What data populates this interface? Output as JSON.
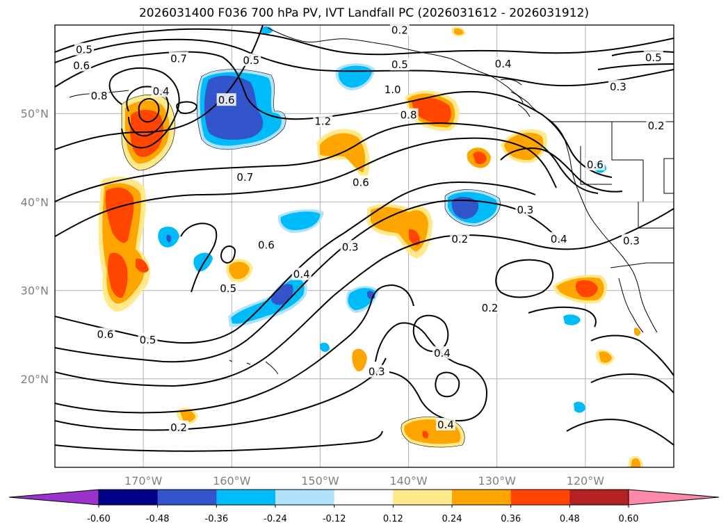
{
  "title": "2026031400 F036 700 hPa PV, IVT Landfall PC (2026031612 - 2026031912)",
  "map": {
    "lon_range": [
      -180,
      -110
    ],
    "lat_range": [
      10,
      60
    ],
    "lon_ticks": [
      {
        "value": -170,
        "label": "170°W"
      },
      {
        "value": -160,
        "label": "160°W"
      },
      {
        "value": -150,
        "label": "150°W"
      },
      {
        "value": -140,
        "label": "140°W"
      },
      {
        "value": -130,
        "label": "130°W"
      },
      {
        "value": -120,
        "label": "120°W"
      }
    ],
    "lat_ticks": [
      {
        "value": 20,
        "label": "20°N"
      },
      {
        "value": 30,
        "label": "30°N"
      },
      {
        "value": 40,
        "label": "40°N"
      },
      {
        "value": 50,
        "label": "50°N"
      }
    ],
    "grid": true,
    "contour_labels": [
      {
        "text": "0.5",
        "lon": -176.7,
        "lat": 57.2
      },
      {
        "text": "0.6",
        "lon": -177.0,
        "lat": 55.4
      },
      {
        "text": "0.7",
        "lon": -166.0,
        "lat": 56.2
      },
      {
        "text": "0.5",
        "lon": -157.8,
        "lat": 56.0
      },
      {
        "text": "0.2",
        "lon": -141.0,
        "lat": 59.4
      },
      {
        "text": "0.5",
        "lon": -141.0,
        "lat": 55.5
      },
      {
        "text": "1.0",
        "lon": -141.8,
        "lat": 52.7
      },
      {
        "text": "0.4",
        "lon": -129.3,
        "lat": 55.6
      },
      {
        "text": "0.5",
        "lon": -112.3,
        "lat": 56.3
      },
      {
        "text": "0.3",
        "lon": -116.3,
        "lat": 53.0
      },
      {
        "text": "0.2",
        "lon": -112.0,
        "lat": 48.6
      },
      {
        "text": "0.8",
        "lon": -175.0,
        "lat": 52.0
      },
      {
        "text": "0.4",
        "lon": -168.0,
        "lat": 52.5
      },
      {
        "text": "0.6",
        "lon": -160.6,
        "lat": 51.5
      },
      {
        "text": "1.2",
        "lon": -149.7,
        "lat": 49.1
      },
      {
        "text": "0.8",
        "lon": -140.0,
        "lat": 49.8
      },
      {
        "text": "0.6",
        "lon": -118.9,
        "lat": 44.2
      },
      {
        "text": "0.7",
        "lon": -158.5,
        "lat": 42.8
      },
      {
        "text": "0.6",
        "lon": -145.4,
        "lat": 42.2
      },
      {
        "text": "0.3",
        "lon": -126.8,
        "lat": 39.1
      },
      {
        "text": "0.2",
        "lon": -134.2,
        "lat": 35.8
      },
      {
        "text": "0.4",
        "lon": -123.0,
        "lat": 35.8
      },
      {
        "text": "0.3",
        "lon": -114.8,
        "lat": 35.6
      },
      {
        "text": "0.6",
        "lon": -156.1,
        "lat": 35.1
      },
      {
        "text": "0.3",
        "lon": -146.6,
        "lat": 34.9
      },
      {
        "text": "0.4",
        "lon": -152.1,
        "lat": 31.8
      },
      {
        "text": "0.5",
        "lon": -160.4,
        "lat": 30.2
      },
      {
        "text": "0.2",
        "lon": -130.8,
        "lat": 28.0
      },
      {
        "text": "0.6",
        "lon": -174.3,
        "lat": 25.0
      },
      {
        "text": "0.5",
        "lon": -169.5,
        "lat": 24.4
      },
      {
        "text": "0.4",
        "lon": -136.2,
        "lat": 22.9
      },
      {
        "text": "0.3",
        "lon": -143.6,
        "lat": 20.8
      },
      {
        "text": "0.4",
        "lon": -135.8,
        "lat": 14.8
      },
      {
        "text": "0.2",
        "lon": -166.0,
        "lat": 14.5
      }
    ]
  },
  "colorbar": {
    "extend": "both",
    "bounds": [
      "-0.60",
      "-0.48",
      "-0.36",
      "-0.24",
      "-0.12",
      "0.12",
      "0.24",
      "0.36",
      "0.48",
      "0.60"
    ],
    "colors": [
      "#9933cc",
      "#00008b",
      "#3355cc",
      "#00bbf9",
      "#b0e2fb",
      "#ffffff",
      "#ffe98a",
      "#ffa500",
      "#ff4500",
      "#b22222",
      "#ff88aa"
    ]
  }
}
